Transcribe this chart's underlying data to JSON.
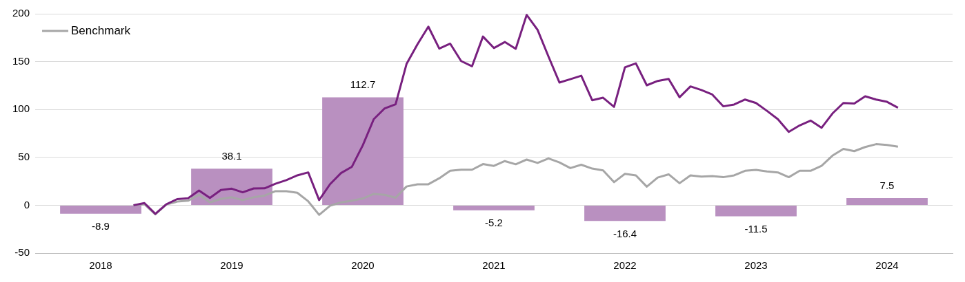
{
  "chart_data": {
    "type": "bar",
    "x": [
      "2018-07",
      "2019-07",
      "2020-07",
      "2021-07",
      "2022-07",
      "2023-07",
      "2024-07"
    ],
    "xlim": [
      "2018",
      "2025"
    ],
    "xticks": [
      {
        "value": "2018-07",
        "label": "2018"
      },
      {
        "value": "2019-07",
        "label": "2019"
      },
      {
        "value": "2020-07",
        "label": "2020"
      },
      {
        "value": "2021-07",
        "label": "2021"
      },
      {
        "value": "2022-07",
        "label": "2022"
      },
      {
        "value": "2023-07",
        "label": "2023"
      },
      {
        "value": "2024-07",
        "label": "2024"
      }
    ],
    "ylim": [
      -50,
      200
    ],
    "yticks": [
      -50,
      0,
      50,
      100,
      150,
      200
    ],
    "grid": "y",
    "legend": "top left",
    "series": [
      {
        "color": "#b990c0",
        "values": [
          -8.9,
          38.1,
          112.7,
          -5.2,
          -16.4,
          -11.5,
          7.5
        ],
        "value_labels": [
          "-8.9",
          "38.1",
          "112.7",
          "-5.2",
          "-16.4",
          "-11.5",
          "7.5"
        ]
      },
      {
        "type": "line",
        "color": "#78207f",
        "x": [
          "2018-10",
          "2018-11",
          "2018-12",
          "2019-01",
          "2019-02",
          "2019-03",
          "2019-04",
          "2019-05",
          "2019-06",
          "2019-07",
          "2019-08",
          "2019-09",
          "2019-10",
          "2019-11",
          "2019-12",
          "2020-01",
          "2020-02",
          "2020-03",
          "2020-04",
          "2020-05",
          "2020-06",
          "2020-07",
          "2020-08",
          "2020-09",
          "2020-10",
          "2020-11",
          "2020-12",
          "2021-01",
          "2021-02",
          "2021-03",
          "2021-04",
          "2021-05",
          "2021-06",
          "2021-07",
          "2021-08",
          "2021-09",
          "2021-10",
          "2021-11",
          "2021-12",
          "2022-01",
          "2022-02",
          "2022-03",
          "2022-04",
          "2022-05",
          "2022-06",
          "2022-07",
          "2022-08",
          "2022-09",
          "2022-10",
          "2022-11",
          "2022-12",
          "2023-01",
          "2023-02",
          "2023-03",
          "2023-04",
          "2023-05",
          "2023-06",
          "2023-07",
          "2023-08",
          "2023-09",
          "2023-10",
          "2023-11",
          "2023-12",
          "2024-01",
          "2024-02",
          "2024-03",
          "2024-04",
          "2024-05",
          "2024-06",
          "2024-07",
          "2024-08"
        ],
        "values": [
          0,
          2.3,
          -9,
          1,
          6.4,
          7.3,
          15.4,
          7.6,
          15.9,
          17.3,
          13.5,
          17.5,
          17.7,
          22.5,
          26.2,
          31.2,
          34.3,
          5.4,
          22,
          33.6,
          40.2,
          62.7,
          89.9,
          101.2,
          105.5,
          147.5,
          168,
          186.5,
          163.6,
          168.8,
          150.6,
          145.2,
          176.2,
          164.2,
          170.5,
          163.4,
          198.8,
          183.2,
          155.3,
          128.2,
          131.7,
          135.3,
          109.7,
          112.3,
          102.8,
          144,
          148.2,
          125.3,
          129.8,
          132,
          112.8,
          124.1,
          120.3,
          115.6,
          103.3,
          105.2,
          110.4,
          106.8,
          98.6,
          89.9,
          76.6,
          83.4,
          88.4,
          80.9,
          95.8,
          106.8,
          106.3,
          113.8,
          110.4,
          108,
          101.9
        ]
      },
      {
        "name": "Benchmark",
        "type": "line",
        "color": "#a6a6a6",
        "x": [
          "2018-10",
          "2018-11",
          "2018-12",
          "2019-01",
          "2019-02",
          "2019-03",
          "2019-04",
          "2019-05",
          "2019-06",
          "2019-07",
          "2019-08",
          "2019-09",
          "2019-10",
          "2019-11",
          "2019-12",
          "2020-01",
          "2020-02",
          "2020-03",
          "2020-04",
          "2020-05",
          "2020-06",
          "2020-07",
          "2020-08",
          "2020-09",
          "2020-10",
          "2020-11",
          "2020-12",
          "2021-01",
          "2021-02",
          "2021-03",
          "2021-04",
          "2021-05",
          "2021-06",
          "2021-07",
          "2021-08",
          "2021-09",
          "2021-10",
          "2021-11",
          "2021-12",
          "2022-01",
          "2022-02",
          "2022-03",
          "2022-04",
          "2022-05",
          "2022-06",
          "2022-07",
          "2022-08",
          "2022-09",
          "2022-10",
          "2022-11",
          "2022-12",
          "2023-01",
          "2023-02",
          "2023-03",
          "2023-04",
          "2023-05",
          "2023-06",
          "2023-07",
          "2023-08",
          "2023-09",
          "2023-10",
          "2023-11",
          "2023-12",
          "2024-01",
          "2024-02",
          "2024-03",
          "2024-04",
          "2024-05",
          "2024-06",
          "2024-07",
          "2024-08"
        ],
        "values": [
          0,
          1,
          -9.5,
          0.7,
          3.8,
          4.7,
          10.9,
          3,
          6.6,
          8.3,
          5.4,
          8.3,
          10,
          14.7,
          14.7,
          13,
          4.1,
          -10,
          -0.5,
          3,
          4.7,
          7.1,
          11.8,
          10.9,
          7.8,
          19.6,
          21.9,
          21.9,
          28.2,
          36,
          37.1,
          37.1,
          43,
          41.1,
          46.1,
          42.8,
          47.7,
          44.2,
          48.9,
          44.7,
          38.8,
          42.3,
          38.3,
          36.4,
          24.1,
          32.8,
          31.2,
          19.4,
          28.9,
          32.3,
          23,
          31.2,
          30,
          30.5,
          29.3,
          31.2,
          36,
          36.9,
          35.3,
          34.3,
          29.3,
          36,
          36,
          41.1,
          51.8,
          58.9,
          56.5,
          60.8,
          63.8,
          62.9,
          61.2
        ]
      }
    ]
  }
}
